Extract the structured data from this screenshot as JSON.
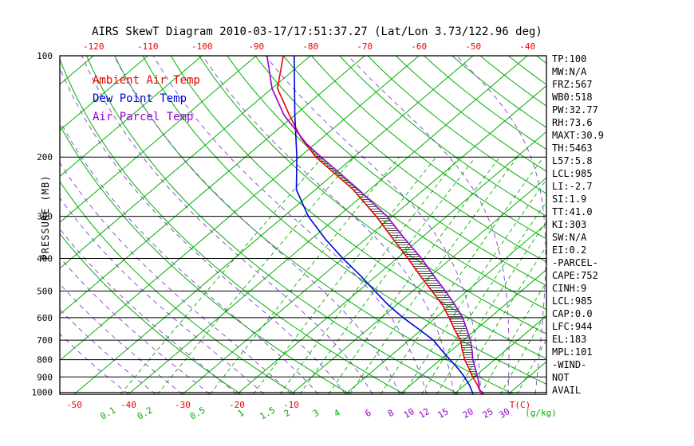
{
  "title": "AIRS SkewT Diagram 2010-03-17/17:51:37.27 (Lat/Lon 3.73/122.96 deg)",
  "colors": {
    "background": "#ffffff",
    "frame": "#000000",
    "isoline_green": "#00b000",
    "moist_purple": "#8040d0",
    "temp_red": "#ee0000",
    "dew_blue": "#0000dd",
    "parcel_purple": "#9400d3",
    "axis_text": "#000000",
    "hatch": "#222222"
  },
  "legend": [
    {
      "label": "Ambient Air Temp",
      "color": "#ee0000"
    },
    {
      "label": "Dew Point Temp",
      "color": "#0000dd"
    },
    {
      "label": "Air Parcel Temp",
      "color": "#9400d3"
    }
  ],
  "y_axis": {
    "label": "PRESSURE (MB)",
    "ticks": [
      100,
      200,
      300,
      400,
      500,
      600,
      700,
      800,
      900,
      1000
    ]
  },
  "top_axis": {
    "ticks": [
      -120,
      -110,
      -100,
      -90,
      -80,
      -70,
      -60,
      -50,
      -40
    ],
    "color": "#ee0000"
  },
  "bottom_axis": {
    "temp_ticks": [
      -50,
      -40,
      -30,
      -20,
      -10
    ],
    "temp_unit": "T(C)",
    "mixing_unit": "(g/kg)",
    "mixing_ticks": [
      {
        "value": "0.1",
        "color": "#00b000"
      },
      {
        "value": "0.2",
        "color": "#00b000"
      },
      {
        "value": "0.5",
        "color": "#00b000"
      },
      {
        "value": "1",
        "color": "#00b000"
      },
      {
        "value": "1.5",
        "color": "#00b000"
      },
      {
        "value": "2",
        "color": "#00b000"
      },
      {
        "value": "3",
        "color": "#00b000"
      },
      {
        "value": "4",
        "color": "#00b000"
      },
      {
        "value": "6",
        "color": "#9400d3"
      },
      {
        "value": "8",
        "color": "#9400d3"
      },
      {
        "value": "10",
        "color": "#9400d3"
      },
      {
        "value": "12",
        "color": "#9400d3"
      },
      {
        "value": "15",
        "color": "#9400d3"
      },
      {
        "value": "20",
        "color": "#9400d3"
      },
      {
        "value": "25",
        "color": "#9400d3"
      },
      {
        "value": "30",
        "color": "#9400d3"
      }
    ]
  },
  "stats": [
    "TP:100",
    "MW:N/A",
    "FRZ:567",
    "WB0:518",
    "PW:32.77",
    "RH:73.6",
    "MAXT:30.9",
    "TH:5463",
    "L57:5.8",
    "LCL:985",
    "LI:-2.7",
    "SI:1.9",
    "TT:41.0",
    "KI:303",
    "SW:N/A",
    "EI:0.2",
    "-PARCEL-",
    "CAPE:752",
    "CINH:9",
    "LCL:985",
    "CAP:0.0",
    "LFC:944",
    "EL:183",
    "MPL:101",
    "-WIND-",
    "NOT",
    "AVAIL"
  ],
  "chart_data": {
    "type": "skewt",
    "title": "AIRS SkewT Diagram 2010-03-17/17:51:37.27 (Lat/Lon 3.73/122.96 deg)",
    "ylabel": "PRESSURE (MB)",
    "xlabel": "T(C)",
    "pressure_range_mb": [
      100,
      1013
    ],
    "pressure_axis": "log",
    "top_temp_labels_c": [
      -120,
      -110,
      -100,
      -90,
      -80,
      -70,
      -60,
      -50,
      -40
    ],
    "bottom_temp_labels_c": [
      -50,
      -40,
      -30,
      -20,
      -10
    ],
    "isotherms_c": {
      "start": -120,
      "end": 40,
      "step": 10
    },
    "dry_adiabats_k": {
      "start": 253,
      "end": 473,
      "step": 10
    },
    "moist_adiabats_start_c": {
      "start": -40,
      "end": 40,
      "step": 5
    },
    "mixing_ratio_lines_gkg": [
      0.1,
      0.2,
      0.5,
      1,
      1.5,
      2,
      3,
      4,
      6,
      8,
      10,
      12,
      15,
      20,
      25,
      30
    ],
    "cape_hatch_pressure_mb": {
      "from": 944,
      "to": 183
    },
    "series": [
      {
        "name": "Ambient Air Temp",
        "color": "#ee0000",
        "points_p_t": [
          [
            1013,
            25.5
          ],
          [
            1000,
            24.5
          ],
          [
            950,
            22.3
          ],
          [
            900,
            19.7
          ],
          [
            850,
            17.2
          ],
          [
            800,
            14.5
          ],
          [
            750,
            12.0
          ],
          [
            700,
            9.5
          ],
          [
            650,
            6.0
          ],
          [
            600,
            2.5
          ],
          [
            550,
            -1.5
          ],
          [
            500,
            -6.5
          ],
          [
            450,
            -12.0
          ],
          [
            400,
            -18.0
          ],
          [
            350,
            -25.0
          ],
          [
            300,
            -33.0
          ],
          [
            250,
            -43.0
          ],
          [
            200,
            -57.0
          ],
          [
            175,
            -64.0
          ],
          [
            150,
            -71.0
          ],
          [
            125,
            -79.0
          ],
          [
            100,
            -85.0
          ]
        ]
      },
      {
        "name": "Dew Point Temp",
        "color": "#0000dd",
        "points_p_t": [
          [
            1013,
            23.5
          ],
          [
            1000,
            23.0
          ],
          [
            950,
            20.8
          ],
          [
            900,
            18.2
          ],
          [
            850,
            15.2
          ],
          [
            800,
            11.8
          ],
          [
            750,
            8.2
          ],
          [
            700,
            4.5
          ],
          [
            650,
            -0.5
          ],
          [
            600,
            -6.0
          ],
          [
            550,
            -11.5
          ],
          [
            500,
            -17.0
          ],
          [
            450,
            -23.0
          ],
          [
            400,
            -30.0
          ],
          [
            350,
            -37.5
          ],
          [
            300,
            -45.5
          ],
          [
            250,
            -53.5
          ],
          [
            200,
            -60.5
          ],
          [
            150,
            -70.0
          ],
          [
            100,
            -83.0
          ]
        ]
      },
      {
        "name": "Air Parcel Temp",
        "color": "#9400d3",
        "points_p_t": [
          [
            1013,
            25.5
          ],
          [
            1000,
            24.8
          ],
          [
            985,
            23.8
          ],
          [
            950,
            22.6
          ],
          [
            900,
            20.6
          ],
          [
            850,
            18.4
          ],
          [
            800,
            16.0
          ],
          [
            750,
            13.8
          ],
          [
            700,
            11.3
          ],
          [
            650,
            8.3
          ],
          [
            600,
            5.0
          ],
          [
            550,
            0.8
          ],
          [
            500,
            -4.0
          ],
          [
            450,
            -9.5
          ],
          [
            400,
            -15.5
          ],
          [
            350,
            -22.8
          ],
          [
            300,
            -31.0
          ],
          [
            250,
            -42.0
          ],
          [
            200,
            -56.0
          ],
          [
            183,
            -61.5
          ],
          [
            150,
            -72.0
          ],
          [
            125,
            -80.0
          ],
          [
            100,
            -88.0
          ]
        ]
      }
    ]
  }
}
